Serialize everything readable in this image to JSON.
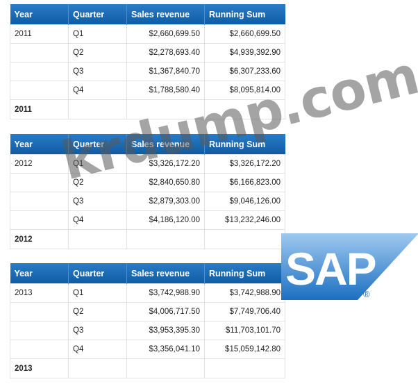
{
  "columns": [
    "Year",
    "Quarter",
    "Sales revenue",
    "Running Sum"
  ],
  "tables": [
    {
      "rows": [
        [
          "2011",
          "Q1",
          "$2,660,699.50",
          "$2,660,699.50"
        ],
        [
          "",
          "Q2",
          "$2,278,693.40",
          "$4,939,392.90"
        ],
        [
          "",
          "Q3",
          "$1,367,840.70",
          "$6,307,233.60"
        ],
        [
          "",
          "Q4",
          "$1,788,580.40",
          "$8,095,814.00"
        ]
      ],
      "footer": "2011"
    },
    {
      "rows": [
        [
          "2012",
          "Q1",
          "$3,326,172.20",
          "$3,326,172.20"
        ],
        [
          "",
          "Q2",
          "$2,840,650.80",
          "$6,166,823.00"
        ],
        [
          "",
          "Q3",
          "$2,879,303.00",
          "$9,046,126.00"
        ],
        [
          "",
          "Q4",
          "$4,186,120.00",
          "$13,232,246.00"
        ]
      ],
      "footer": "2012"
    },
    {
      "rows": [
        [
          "2013",
          "Q1",
          "$3,742,988.90",
          "$3,742,988.90"
        ],
        [
          "",
          "Q2",
          "$4,006,717.50",
          "$7,749,706.40"
        ],
        [
          "",
          "Q3",
          "$3,953,395.30",
          "$11,703,101.70"
        ],
        [
          "",
          "Q4",
          "$3,356,041.10",
          "$15,059,142.80"
        ]
      ],
      "footer": "2013"
    }
  ],
  "watermark": "krdump.com",
  "logo": {
    "text": "SAP",
    "registered": "®",
    "colors": {
      "top": "#9fc9ef",
      "bottom": "#1c6fc2",
      "text": "#ffffff"
    }
  }
}
